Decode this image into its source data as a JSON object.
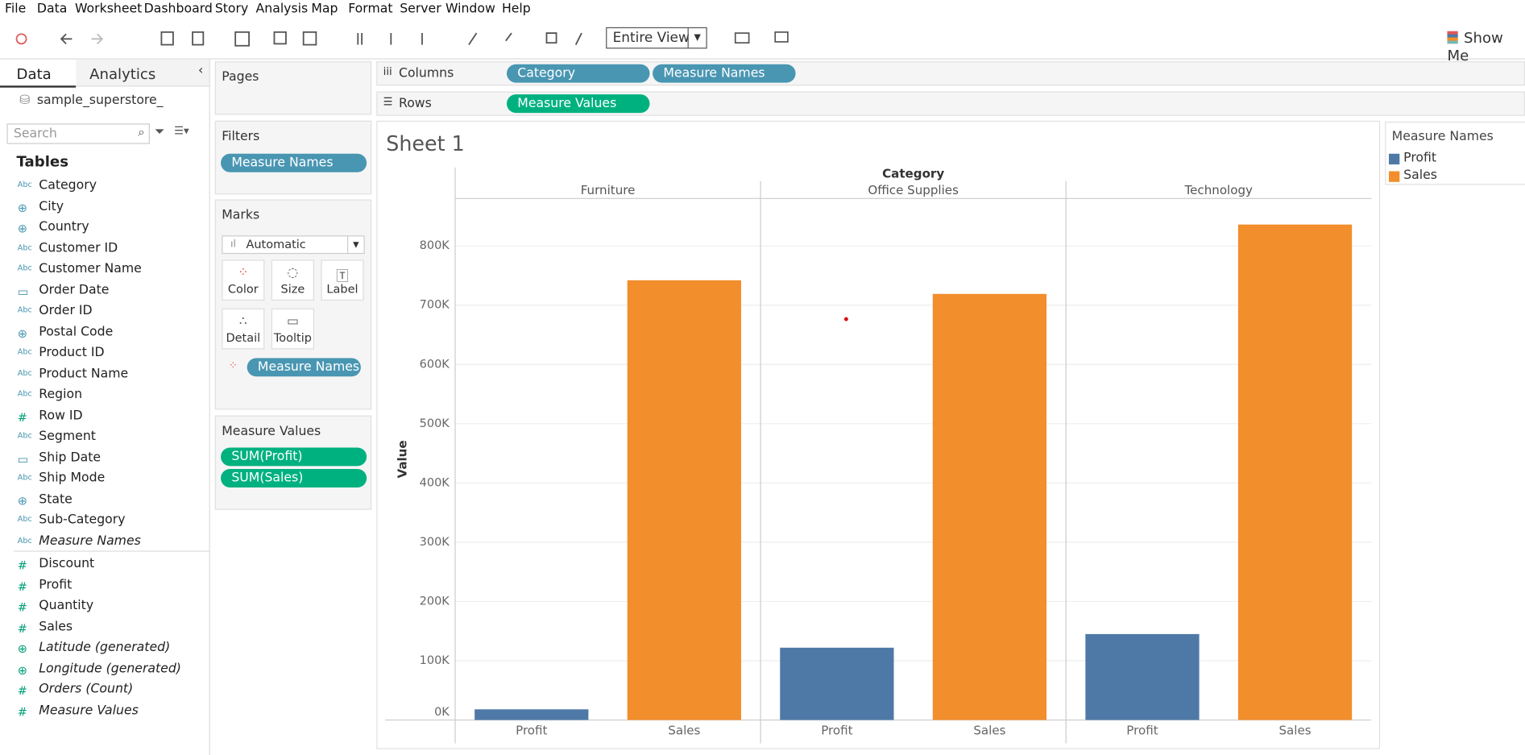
{
  "menu": [
    "File",
    "Data",
    "Worksheet",
    "Dashboard",
    "Story",
    "Analysis",
    "Map",
    "Format",
    "Server",
    "Window",
    "Help"
  ],
  "toolbar": {
    "view": "Entire View",
    "show_me": "Show Me"
  },
  "data_pane": {
    "tabs": [
      "Data",
      "Analytics"
    ],
    "datasource": "sample_superstore_",
    "search_placeholder": "Search",
    "tables_heading": "Tables",
    "dimensions": [
      {
        "kind": "Abc",
        "name": "Category"
      },
      {
        "kind": "geo",
        "name": "City"
      },
      {
        "kind": "geo",
        "name": "Country"
      },
      {
        "kind": "Abc",
        "name": "Customer ID"
      },
      {
        "kind": "Abc",
        "name": "Customer Name"
      },
      {
        "kind": "date",
        "name": "Order Date"
      },
      {
        "kind": "Abc",
        "name": "Order ID"
      },
      {
        "kind": "geo",
        "name": "Postal Code"
      },
      {
        "kind": "Abc",
        "name": "Product ID"
      },
      {
        "kind": "Abc",
        "name": "Product Name"
      },
      {
        "kind": "Abc",
        "name": "Region"
      },
      {
        "kind": "#",
        "name": "Row ID"
      },
      {
        "kind": "Abc",
        "name": "Segment"
      },
      {
        "kind": "date",
        "name": "Ship Date"
      },
      {
        "kind": "Abc",
        "name": "Ship Mode"
      },
      {
        "kind": "geo",
        "name": "State"
      },
      {
        "kind": "Abc",
        "name": "Sub-Category"
      },
      {
        "kind": "Abc",
        "name": "Measure Names",
        "italic": true
      }
    ],
    "measures": [
      {
        "kind": "#",
        "name": "Discount"
      },
      {
        "kind": "#",
        "name": "Profit"
      },
      {
        "kind": "#",
        "name": "Quantity"
      },
      {
        "kind": "#",
        "name": "Sales"
      },
      {
        "kind": "geo",
        "name": "Latitude (generated)",
        "italic": true
      },
      {
        "kind": "geo",
        "name": "Longitude (generated)",
        "italic": true
      },
      {
        "kind": "#",
        "name": "Orders (Count)",
        "italic": true
      },
      {
        "kind": "#",
        "name": "Measure Values",
        "italic": true
      }
    ]
  },
  "cards": {
    "pages": "Pages",
    "filters": {
      "title": "Filters",
      "pills": [
        "Measure Names"
      ]
    },
    "marks": {
      "title": "Marks",
      "type": "Automatic",
      "buttons": [
        "Color",
        "Size",
        "Label",
        "Detail",
        "Tooltip"
      ],
      "pill": "Measure Names"
    },
    "measure_values": {
      "title": "Measure Values",
      "pills": [
        "SUM(Profit)",
        "SUM(Sales)"
      ]
    }
  },
  "shelves": {
    "columns": {
      "label": "Columns",
      "pills": [
        "Category",
        "Measure Names"
      ]
    },
    "rows": {
      "label": "Rows",
      "pills": [
        "Measure Values"
      ]
    }
  },
  "sheet_title": "Sheet 1",
  "chart_data": {
    "type": "bar",
    "header": "Category",
    "categories": [
      "Furniture",
      "Office Supplies",
      "Technology"
    ],
    "y_label": "Value",
    "legend_title": "Measure Names",
    "series": [
      {
        "name": "Profit",
        "color": "#4e79a7",
        "values": [
          18000,
          122000,
          145000
        ]
      },
      {
        "name": "Sales",
        "color": "#f28e2b",
        "values": [
          742000,
          719000,
          836000
        ]
      }
    ],
    "ylim": [
      0,
      880000
    ],
    "yticks": [
      {
        "value": 0,
        "label": "0K"
      },
      {
        "value": 100000,
        "label": "100K"
      },
      {
        "value": 200000,
        "label": "200K"
      },
      {
        "value": 300000,
        "label": "300K"
      },
      {
        "value": 400000,
        "label": "400K"
      },
      {
        "value": 500000,
        "label": "500K"
      },
      {
        "value": 600000,
        "label": "600K"
      },
      {
        "value": 700000,
        "label": "700K"
      },
      {
        "value": 800000,
        "label": "800K"
      }
    ],
    "grid": true
  }
}
